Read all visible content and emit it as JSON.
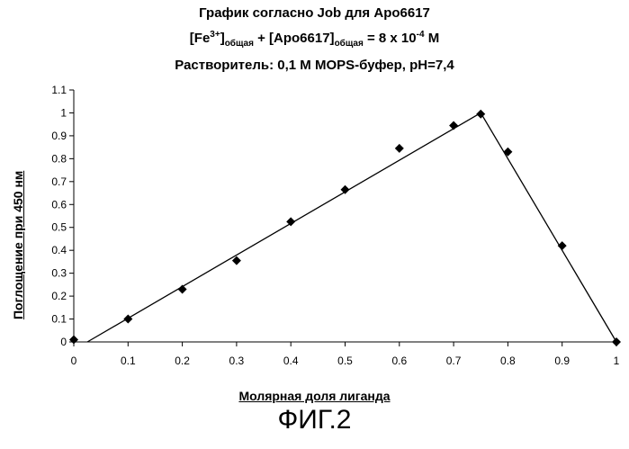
{
  "header": {
    "title_line1": "График согласно Job для Apo6617",
    "title_line2": {
      "part_a": "[Fe",
      "sup_a": "3+",
      "part_b": "]",
      "sub_b": "общая",
      "part_c": " + [Apo6617]",
      "sub_c": "общая",
      "part_d": " = 8 x 10",
      "sup_d": "-4",
      "part_e": " M"
    },
    "title_line3": "Растворитель: 0,1 M MOPS-буфер, pH=7,4"
  },
  "figure_label": "ФИГ.2",
  "chart_data": {
    "type": "scatter",
    "xlabel": "Молярная доля лиганда",
    "ylabel": "Поглощение при 450 нм",
    "xlim": [
      0,
      1
    ],
    "ylim": [
      0,
      1.1
    ],
    "x_ticks": [
      "0",
      "0.1",
      "0.2",
      "0.3",
      "0.4",
      "0.5",
      "0.6",
      "0.7",
      "0.8",
      "0.9",
      "1"
    ],
    "y_ticks": [
      "0",
      "0.1",
      "0.2",
      "0.3",
      "0.4",
      "0.5",
      "0.6",
      "0.7",
      "0.8",
      "0.9",
      "1",
      "1.1"
    ],
    "grid": false,
    "legend": "none",
    "marker": "diamond",
    "marker_color": "#000000",
    "points": [
      {
        "x": 0,
        "y": 0.01
      },
      {
        "x": 0.1,
        "y": 0.1
      },
      {
        "x": 0.2,
        "y": 0.23
      },
      {
        "x": 0.3,
        "y": 0.355
      },
      {
        "x": 0.4,
        "y": 0.525
      },
      {
        "x": 0.5,
        "y": 0.665
      },
      {
        "x": 0.6,
        "y": 0.845
      },
      {
        "x": 0.7,
        "y": 0.945
      },
      {
        "x": 0.75,
        "y": 0.995
      },
      {
        "x": 0.8,
        "y": 0.83
      },
      {
        "x": 0.9,
        "y": 0.42
      },
      {
        "x": 1,
        "y": 0
      }
    ],
    "fit_lines": [
      {
        "points": [
          {
            "x": 0.025,
            "y": 0
          },
          {
            "x": 0.75,
            "y": 1.0
          }
        ]
      },
      {
        "points": [
          {
            "x": 0.75,
            "y": 1.0
          },
          {
            "x": 1.0,
            "y": 0
          }
        ]
      }
    ]
  }
}
